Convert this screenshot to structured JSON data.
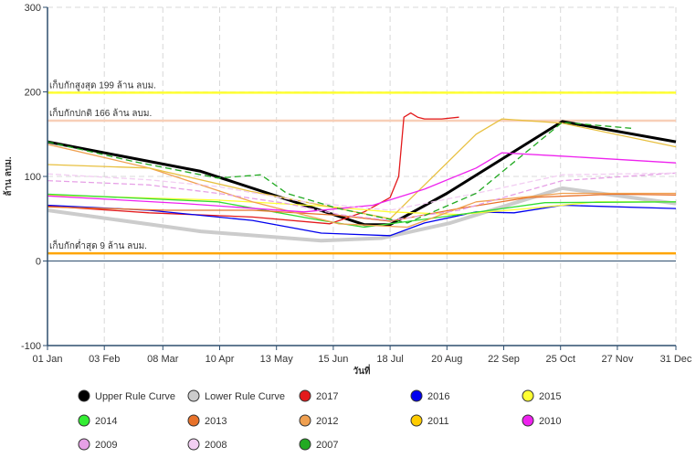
{
  "chart_data": {
    "type": "line",
    "ylabel": "ล้าน ลบม.",
    "xlabel": "วันที่",
    "ylim": [
      -100,
      300
    ],
    "yticks": [
      -100,
      0,
      100,
      200,
      300
    ],
    "xlim_day": [
      1,
      366
    ],
    "xticks": [
      {
        "day": 1,
        "label": "01 Jan"
      },
      {
        "day": 34,
        "label": "03 Feb"
      },
      {
        "day": 68,
        "label": "08 Mar"
      },
      {
        "day": 101,
        "label": "10 Apr"
      },
      {
        "day": 134,
        "label": "13 May"
      },
      {
        "day": 167,
        "label": "15 Jun"
      },
      {
        "day": 200,
        "label": "18 Jul"
      },
      {
        "day": 233,
        "label": "20 Aug"
      },
      {
        "day": 266,
        "label": "22 Sep"
      },
      {
        "day": 299,
        "label": "25 Oct"
      },
      {
        "day": 332,
        "label": "27 Nov"
      },
      {
        "day": 366,
        "label": "31 Dec"
      }
    ],
    "grid": true,
    "legend_position": "bottom",
    "reference_lines": [
      {
        "label": "เก็บกักสูงสุด 199 ล้าน ลบม.",
        "value": 199,
        "color": "#ffff33"
      },
      {
        "label": "เก็บกักปกติ 166 ล้าน ลบม.",
        "value": 166,
        "color": "#f8cfb8"
      },
      {
        "label": "เก็บกักต่ำสุด 9 ล้าน ลบม.",
        "value": 9,
        "color": "#ffa500"
      }
    ],
    "series": [
      {
        "name": "Upper Rule Curve",
        "color": "#000000",
        "legend_color": "#000000",
        "width": 3,
        "dash": "",
        "x": [
          1,
          90,
          185,
          200,
          233,
          300,
          366
        ],
        "y": [
          141,
          106,
          43,
          43,
          80,
          165,
          141
        ]
      },
      {
        "name": "Lower Rule Curve",
        "color": "#cccccc",
        "legend_color": "#cccccc",
        "width": 4,
        "dash": "",
        "x": [
          1,
          90,
          160,
          195,
          235,
          300,
          366
        ],
        "y": [
          60,
          35,
          24,
          27,
          45,
          86,
          68
        ]
      },
      {
        "name": "2017",
        "color": "#e31a1c",
        "legend_color": "#e31a1c",
        "width": 1.3,
        "dash": "",
        "x": [
          1,
          60,
          120,
          165,
          185,
          200,
          205,
          208,
          212,
          216,
          220,
          230,
          240
        ],
        "y": [
          65,
          57,
          52,
          44,
          58,
          75,
          100,
          170,
          175,
          170,
          168,
          168,
          170
        ]
      },
      {
        "name": "2016",
        "color": "#0000ee",
        "legend_color": "#0000ee",
        "width": 1.3,
        "dash": "",
        "x": [
          1,
          60,
          120,
          160,
          200,
          220,
          250,
          272,
          300,
          366
        ],
        "y": [
          66,
          60,
          48,
          33,
          30,
          45,
          58,
          57,
          66,
          62
        ]
      },
      {
        "name": "2015",
        "color": "#ffff33",
        "legend_color": "#ffff33",
        "width": 1.3,
        "dash": "",
        "x": [
          1,
          100,
          160,
          200,
          240,
          280,
          320,
          366
        ],
        "y": [
          78,
          72,
          65,
          58,
          55,
          62,
          70,
          70
        ]
      },
      {
        "name": "2014",
        "color": "#33dd33",
        "legend_color": "#33ee33",
        "width": 1.3,
        "dash": "",
        "x": [
          1,
          100,
          160,
          185,
          230,
          290,
          366
        ],
        "y": [
          79,
          70,
          48,
          40,
          52,
          69,
          70
        ]
      },
      {
        "name": "2013",
        "color": "#e8722a",
        "legend_color": "#e8722a",
        "width": 1.3,
        "dash": "",
        "x": [
          1,
          70,
          120,
          170,
          200,
          240,
          280,
          330,
          366
        ],
        "y": [
          64,
          60,
          60,
          54,
          47,
          62,
          75,
          79,
          78
        ]
      },
      {
        "name": "2012",
        "color": "#f0a050",
        "legend_color": "#f0a050",
        "width": 1.3,
        "dash": "",
        "x": [
          1,
          60,
          120,
          170,
          210,
          250,
          300,
          366
        ],
        "y": [
          138,
          110,
          70,
          44,
          40,
          70,
          80,
          80
        ]
      },
      {
        "name": "2011",
        "color": "#e8c040",
        "legend_color": "#ffcc00",
        "width": 1.3,
        "dash": "",
        "x": [
          1,
          60,
          120,
          170,
          200,
          230,
          250,
          265,
          300,
          366
        ],
        "y": [
          114,
          110,
          82,
          62,
          50,
          110,
          150,
          168,
          163,
          135
        ]
      },
      {
        "name": "2010",
        "color": "#ee22ee",
        "legend_color": "#ee22ee",
        "width": 1.3,
        "dash": "",
        "x": [
          1,
          80,
          150,
          190,
          220,
          250,
          265,
          300,
          366
        ],
        "y": [
          77,
          68,
          58,
          66,
          85,
          110,
          128,
          124,
          116
        ]
      },
      {
        "name": "2009",
        "color": "#e6a0e6",
        "legend_color": "#e6a0e6",
        "width": 1.3,
        "dash": "6,3",
        "x": [
          1,
          60,
          100,
          140,
          170,
          200,
          240,
          300,
          366
        ],
        "y": [
          95,
          90,
          80,
          68,
          55,
          48,
          60,
          95,
          104
        ]
      },
      {
        "name": "2008",
        "color": "#f2cef2",
        "legend_color": "#f2cef2",
        "width": 1.3,
        "dash": "6,3",
        "x": [
          1,
          60,
          100,
          150,
          200,
          250,
          300,
          366
        ],
        "y": [
          103,
          96,
          88,
          70,
          60,
          80,
          102,
          104
        ]
      },
      {
        "name": "2007",
        "color": "#22aa22",
        "legend_color": "#22aa22",
        "width": 1.3,
        "dash": "7,4",
        "x": [
          1,
          50,
          100,
          125,
          140,
          170,
          210,
          250,
          300,
          340
        ],
        "y": [
          141,
          118,
          98,
          102,
          80,
          62,
          45,
          80,
          164,
          157
        ]
      }
    ]
  }
}
